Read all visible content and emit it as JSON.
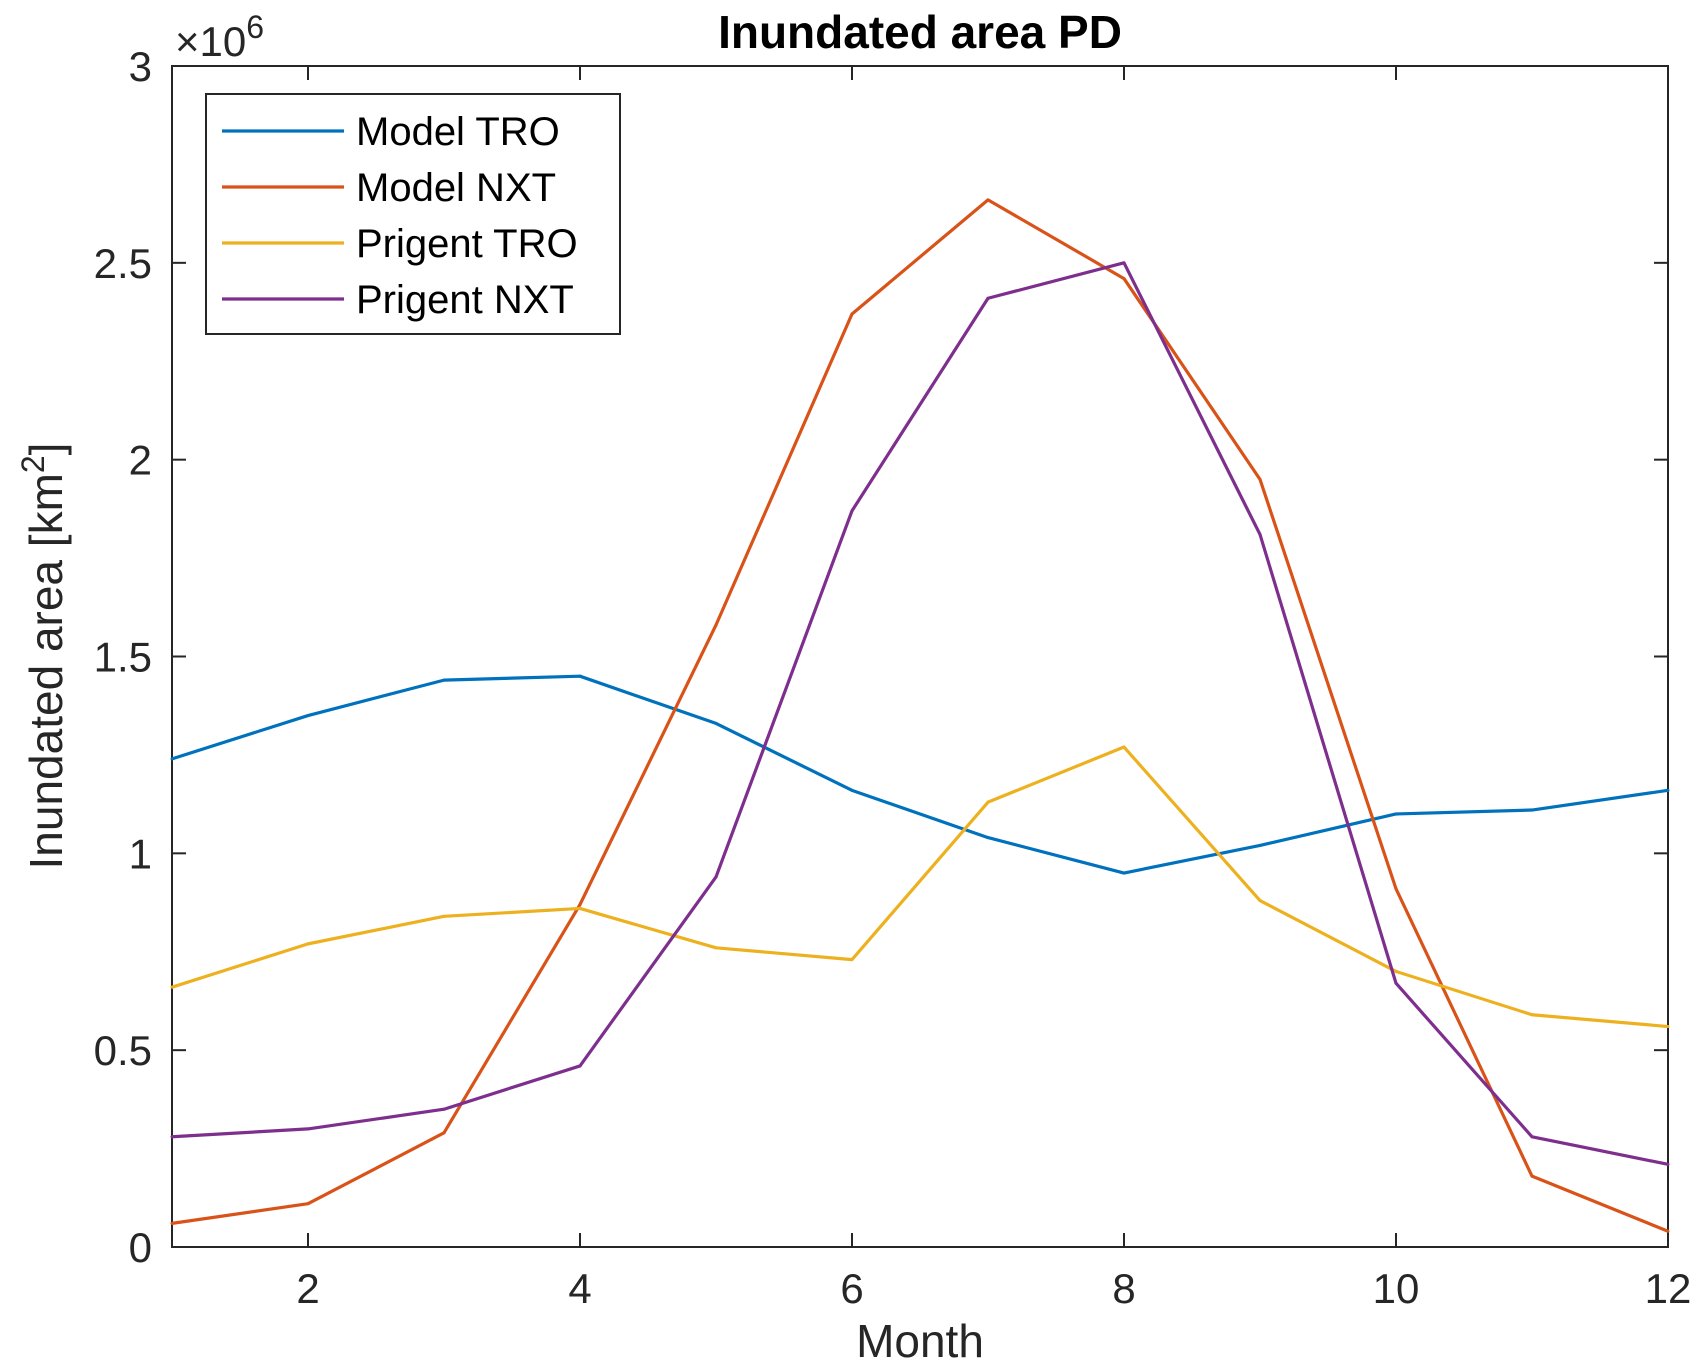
{
  "chart_data": {
    "type": "line",
    "title": "Inundated area PD",
    "xlabel": "Month",
    "ylabel": "Inundated area [km",
    "ylabel_superscript": "2",
    "ylabel_suffix": "]",
    "y_exponent_prefix": "×10",
    "y_exponent_power": "6",
    "xlim": [
      1,
      12
    ],
    "ylim": [
      0,
      3000000
    ],
    "x_ticks": [
      2,
      4,
      6,
      8,
      10,
      12
    ],
    "y_ticks": [
      0,
      500000,
      1000000,
      1500000,
      2000000,
      2500000,
      3000000
    ],
    "y_tick_labels": [
      "0",
      "0.5",
      "1",
      "1.5",
      "2",
      "2.5",
      "3"
    ],
    "x_tick_labels": [
      "2",
      "4",
      "6",
      "8",
      "10",
      "12"
    ],
    "legend_position": "top-left",
    "grid": false,
    "x": [
      1,
      2,
      3,
      4,
      5,
      6,
      7,
      8,
      9,
      10,
      11,
      12
    ],
    "series": [
      {
        "name": "Model TRO",
        "color": "#0072BD",
        "values": [
          1240000,
          1350000,
          1440000,
          1450000,
          1330000,
          1160000,
          1040000,
          950000,
          1020000,
          1100000,
          1110000,
          1160000
        ]
      },
      {
        "name": "Model NXT",
        "color": "#D95319",
        "values": [
          60000,
          110000,
          290000,
          870000,
          1580000,
          2370000,
          2660000,
          2460000,
          1950000,
          910000,
          180000,
          40000
        ]
      },
      {
        "name": "Prigent TRO",
        "color": "#EDB120",
        "values": [
          660000,
          770000,
          840000,
          860000,
          760000,
          730000,
          1130000,
          1270000,
          880000,
          700000,
          590000,
          560000
        ]
      },
      {
        "name": "Prigent NXT",
        "color": "#7E2F8E",
        "values": [
          280000,
          300000,
          350000,
          460000,
          940000,
          1870000,
          2410000,
          2500000,
          1810000,
          670000,
          280000,
          210000
        ]
      }
    ]
  }
}
